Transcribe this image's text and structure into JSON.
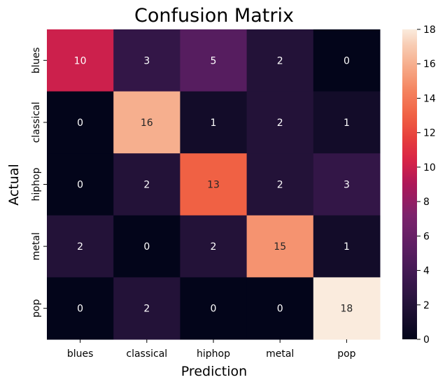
{
  "chart_data": {
    "type": "heatmap",
    "title": "Confusion Matrix",
    "xlabel": "Prediction",
    "ylabel": "Actual",
    "x_categories": [
      "blues",
      "classical",
      "hiphop",
      "metal",
      "pop"
    ],
    "y_categories": [
      "blues",
      "classical",
      "hiphop",
      "metal",
      "pop"
    ],
    "values": [
      [
        10,
        3,
        5,
        2,
        0
      ],
      [
        0,
        16,
        1,
        2,
        1
      ],
      [
        0,
        2,
        13,
        2,
        3
      ],
      [
        2,
        0,
        2,
        15,
        1
      ],
      [
        0,
        2,
        0,
        0,
        18
      ]
    ],
    "colorbar": {
      "vmin": 0,
      "vmax": 18,
      "ticks": [
        "0",
        "2",
        "4",
        "6",
        "8",
        "10",
        "12",
        "14",
        "16",
        "18"
      ],
      "colormap": "rocket"
    },
    "annotations_shown": true
  }
}
